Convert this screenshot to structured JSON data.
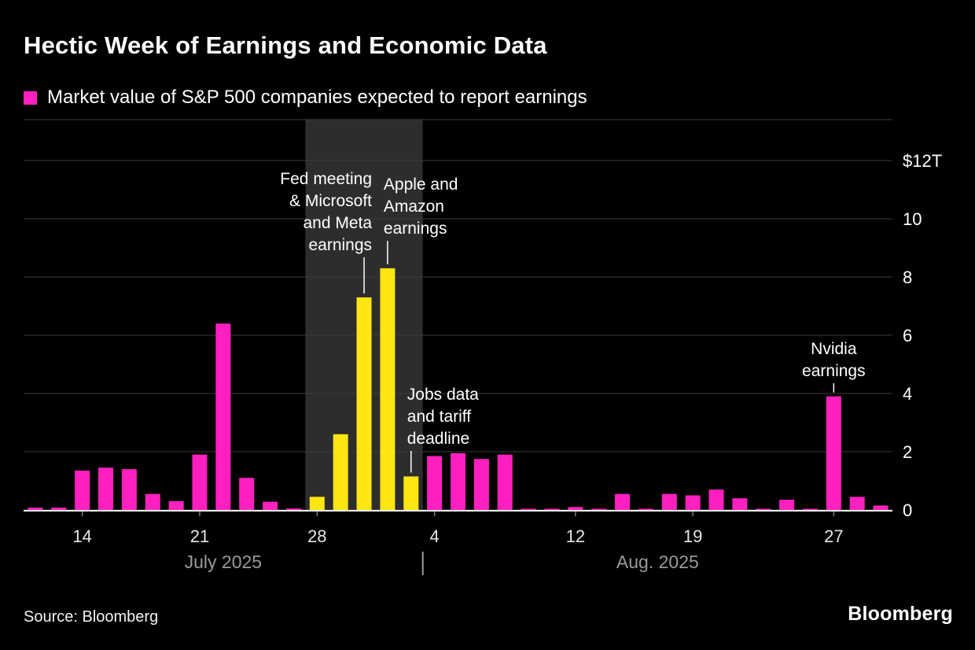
{
  "header": {
    "title": "Hectic Week of Earnings and Economic Data",
    "legend_label": "Market value of S&P 500 companies expected to report earnings"
  },
  "footer": {
    "source": "Source: Bloomberg",
    "brand": "Bloomberg"
  },
  "colors": {
    "background": "#000000",
    "bar_magenta": "#ff20bf",
    "bar_yellow": "#ffe512",
    "highlight_band": "#2d2d2d",
    "gridline": "#3b3b3b",
    "axis_line": "#ffffff",
    "date_tick_label": "#e6e6e6",
    "tick_mark": "#777777",
    "month_label": "#9a9a9a",
    "y_tick_label": "#ffffff",
    "annotation_text": "#ffffff",
    "annotation_pointer": "#ffffff"
  },
  "chart_data": {
    "type": "bar",
    "title": "Hectic Week of Earnings and Economic Data",
    "subtitle": "Market value of S&P 500 companies expected to report earnings",
    "unit": "USD trillions",
    "ylim": [
      0,
      12
    ],
    "grid": true,
    "legend_position": "top-left",
    "y_ticks": [
      {
        "value": 12,
        "label": "$12T"
      },
      {
        "value": 10,
        "label": "10"
      },
      {
        "value": 8,
        "label": "8"
      },
      {
        "value": 6,
        "label": "6"
      },
      {
        "value": 4,
        "label": "4"
      },
      {
        "value": 2,
        "label": "2"
      },
      {
        "value": 0,
        "label": "0"
      }
    ],
    "categories": [
      "Jul 10",
      "Jul 11",
      "Jul 14",
      "Jul 15",
      "Jul 16",
      "Jul 17",
      "Jul 18",
      "Jul 21",
      "Jul 22",
      "Jul 23",
      "Jul 24",
      "Jul 25",
      "Jul 28",
      "Jul 29",
      "Jul 30",
      "Jul 31",
      "Aug 1",
      "Aug 4",
      "Aug 5",
      "Aug 6",
      "Aug 7",
      "Aug 8",
      "Aug 11",
      "Aug 12",
      "Aug 13",
      "Aug 14",
      "Aug 15",
      "Aug 18",
      "Aug 19",
      "Aug 20",
      "Aug 21",
      "Aug 22",
      "Aug 25",
      "Aug 26",
      "Aug 27",
      "Aug 28",
      "Aug 29"
    ],
    "values": [
      0.08,
      0.08,
      1.35,
      1.45,
      1.4,
      0.55,
      0.3,
      1.9,
      6.4,
      1.1,
      0.28,
      0.05,
      0.45,
      2.6,
      7.3,
      8.3,
      1.15,
      1.85,
      1.95,
      1.75,
      1.9,
      0.03,
      0.03,
      0.1,
      0.03,
      0.55,
      0.03,
      0.55,
      0.5,
      0.7,
      0.4,
      0.03,
      0.35,
      0.03,
      3.9,
      0.45,
      0.15
    ],
    "highlight_dates": [
      "Jul 28",
      "Jul 29",
      "Jul 30",
      "Jul 31",
      "Aug 1"
    ],
    "highlight_band": {
      "from": "Jul 28",
      "to": "Aug 1"
    },
    "x_ticks": [
      {
        "date": "Jul 14",
        "label": "14"
      },
      {
        "date": "Jul 21",
        "label": "21"
      },
      {
        "date": "Jul 28",
        "label": "28"
      },
      {
        "date": "Aug 4",
        "label": "4"
      },
      {
        "date": "Aug 12",
        "label": "12"
      },
      {
        "date": "Aug 19",
        "label": "19"
      },
      {
        "date": "Aug 27",
        "label": "27"
      }
    ],
    "month_labels": [
      {
        "label": "July 2025"
      },
      {
        "label": "Aug. 2025"
      }
    ],
    "month_separator": "|",
    "annotations": [
      {
        "lines": [
          "Fed meeting",
          "& Microsoft",
          "and Meta",
          "earnings"
        ],
        "target_date": "Jul 30",
        "align": "right",
        "dx": 10,
        "first_baseline": 234
      },
      {
        "lines": [
          "Apple and",
          "Amazon",
          "earnings"
        ],
        "target_date": "Jul 31",
        "align": "left",
        "dx": -5,
        "first_baseline": 241
      },
      {
        "lines": [
          "Jobs data",
          "and tariff",
          "deadline"
        ],
        "target_date": "Aug 1",
        "align": "left",
        "dx": -5,
        "first_baseline": 508
      },
      {
        "lines": [
          "Nvidia",
          "earnings"
        ],
        "target_date": "Aug 27",
        "align": "center",
        "dx": 0,
        "first_baseline": 450
      }
    ]
  }
}
